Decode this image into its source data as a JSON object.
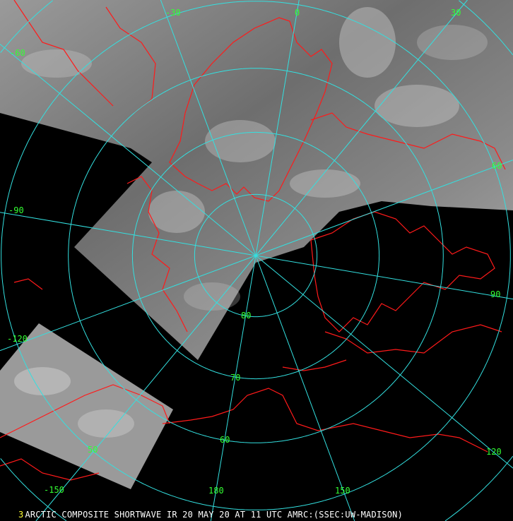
{
  "caption": {
    "frame_number": "3",
    "text": "ARCTIC COMPOSITE SHORTWAVE IR 20 MAY 20 AT 11 UTC AMRC:(SSEC:UW-MADISON)"
  },
  "map": {
    "projection": "polar stereographic (north pole)",
    "colors": {
      "background": "#000000",
      "graticule": "#33e0e0",
      "coastline": "#ff1a1a",
      "labels": "#33ff33",
      "caption": "#ffffff",
      "frame_number": "#ffff33"
    },
    "latitude_circles": [
      80,
      70,
      60,
      50,
      40
    ],
    "meridians": [
      -150,
      -120,
      -90,
      -60,
      -30,
      0,
      30,
      60,
      90,
      120,
      150,
      180
    ],
    "latitude_labels": [
      "80",
      "70",
      "60",
      "50"
    ],
    "longitude_labels": [
      "-30",
      "0",
      "30",
      "-60",
      "60",
      "-90",
      "90",
      "-120",
      "120",
      "-150",
      "180",
      "150"
    ]
  }
}
